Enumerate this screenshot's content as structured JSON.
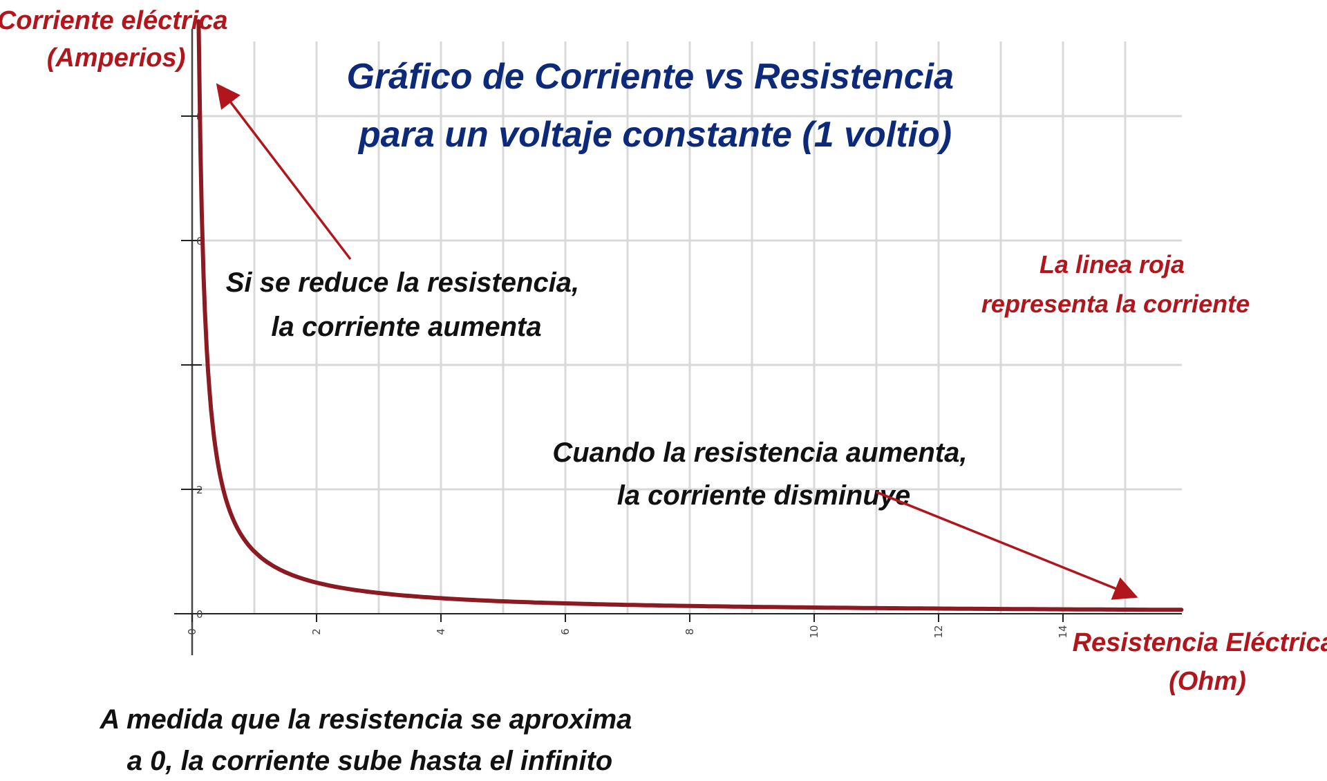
{
  "chart_data": {
    "type": "line",
    "title": "Gráfico de Corriente vs Resistencia para un voltaje constante (1 voltio)",
    "title_lines": [
      "Gráfico de Corriente vs Resistencia",
      "para un voltaje constante (1 voltio)"
    ],
    "xlabel_lines": [
      "Resistencia Eléctrica",
      "(Ohm)"
    ],
    "ylabel_lines": [
      "Corriente eléctrica",
      "(Amperios)"
    ],
    "xlim": [
      0,
      16
    ],
    "ylim": [
      0,
      9
    ],
    "x_ticks": [
      0,
      2,
      4,
      6,
      8,
      10,
      12,
      14
    ],
    "y_ticks": [
      0,
      2,
      4,
      6,
      8
    ],
    "y_tick_labels": [
      "0",
      "2",
      "",
      "6",
      "8"
    ],
    "grid": true,
    "series": [
      {
        "formula": "y = 1/x",
        "color": "#8b1a22",
        "x": [
          0.11,
          0.125,
          0.15,
          0.2,
          0.25,
          0.3,
          0.4,
          0.5,
          0.75,
          1,
          1.5,
          2,
          3,
          4,
          5,
          6,
          8,
          10,
          12,
          14,
          16
        ],
        "y": [
          9.09,
          8,
          6.67,
          5,
          4,
          3.33,
          2.5,
          2,
          1.33,
          1,
          0.67,
          0.5,
          0.33,
          0.25,
          0.2,
          0.17,
          0.125,
          0.1,
          0.083,
          0.071,
          0.0625
        ]
      }
    ],
    "annotations": [
      {
        "lines": [
          "Si se reduce la  resistencia,",
          "la corriente aumenta"
        ],
        "color": "#111111"
      },
      {
        "lines": [
          "Cuando la resistencia aumenta,",
          "la corriente disminuye"
        ],
        "color": "#111111"
      },
      {
        "lines": [
          "La linea roja",
          "representa la corriente"
        ],
        "color": "#b0161c"
      },
      {
        "lines": [
          "A medida que la resistencia se aproxima",
          "a 0, la corriente sube hasta el infinito"
        ],
        "color": "#111111"
      }
    ],
    "colors": {
      "title": "#0d2a7a",
      "labels": "#b0161c",
      "curve": "#8b1a22",
      "arrows": "#b0161c",
      "grid": "#d9d9d9"
    }
  }
}
